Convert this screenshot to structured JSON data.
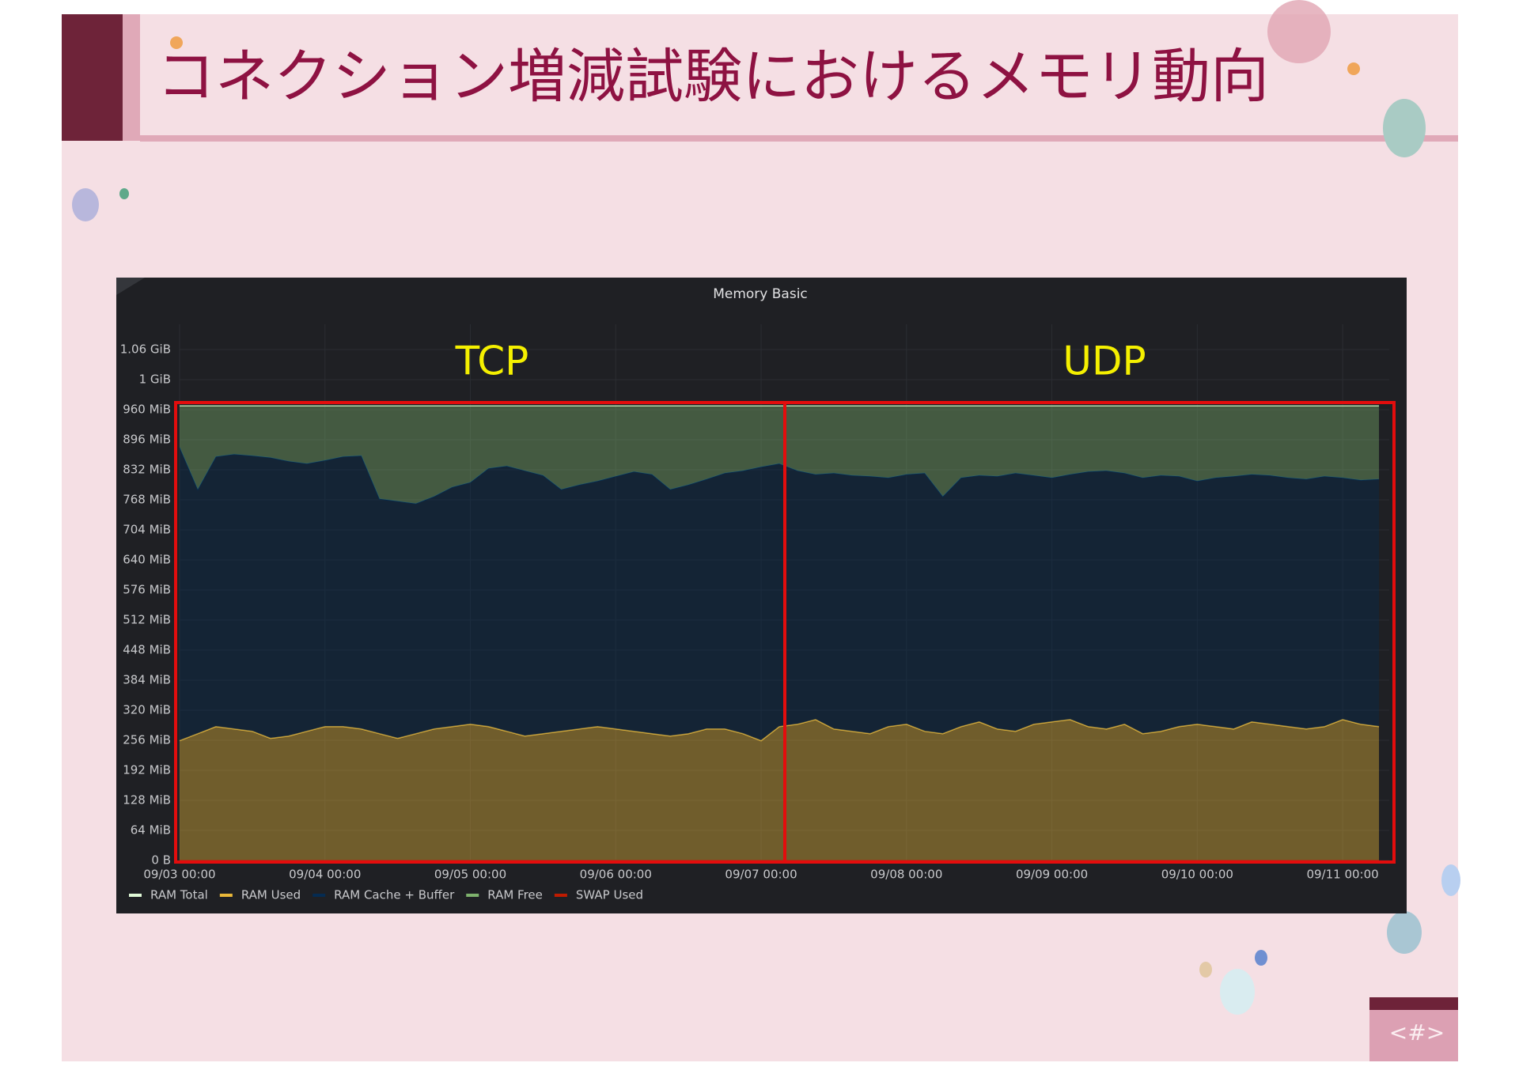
{
  "slide": {
    "title": "コネクション増減試験におけるメモリ動向",
    "page_label": "<#>"
  },
  "chart_data": {
    "type": "stacked-area",
    "title": "Memory Basic",
    "annotations": [
      "TCP",
      "UDP"
    ],
    "categories": [
      "09/03 00:00",
      null,
      null,
      null,
      null,
      null,
      null,
      null,
      "09/04 00:00",
      null,
      null,
      null,
      null,
      null,
      null,
      null,
      "09/05 00:00",
      null,
      null,
      null,
      null,
      null,
      null,
      null,
      "09/06 00:00",
      null,
      null,
      null,
      null,
      null,
      null,
      null,
      "09/07 00:00",
      null,
      null,
      null,
      null,
      null,
      null,
      null,
      "09/08 00:00",
      null,
      null,
      null,
      null,
      null,
      null,
      null,
      "09/09 00:00",
      null,
      null,
      null,
      null,
      null,
      null,
      null,
      "09/10 00:00",
      null,
      null,
      null,
      null,
      null,
      null,
      null,
      "09/11 00:00",
      null,
      null
    ],
    "ylim": [
      0,
      1088
    ],
    "yticks": [
      {
        "value": 0,
        "label": "0 B"
      },
      {
        "value": 64,
        "label": "64 MiB"
      },
      {
        "value": 128,
        "label": "128 MiB"
      },
      {
        "value": 192,
        "label": "192 MiB"
      },
      {
        "value": 256,
        "label": "256 MiB"
      },
      {
        "value": 320,
        "label": "320 MiB"
      },
      {
        "value": 384,
        "label": "384 MiB"
      },
      {
        "value": 448,
        "label": "448 MiB"
      },
      {
        "value": 512,
        "label": "512 MiB"
      },
      {
        "value": 576,
        "label": "576 MiB"
      },
      {
        "value": 640,
        "label": "640 MiB"
      },
      {
        "value": 704,
        "label": "704 MiB"
      },
      {
        "value": 768,
        "label": "768 MiB"
      },
      {
        "value": 832,
        "label": "832 MiB"
      },
      {
        "value": 896,
        "label": "896 MiB"
      },
      {
        "value": 960,
        "label": "960 MiB"
      },
      {
        "value": 1024,
        "label": "1 GiB"
      },
      {
        "value": 1088,
        "label": "1.06 GiB"
      }
    ],
    "grid": true,
    "legend": "bottom-left",
    "series": [
      {
        "name": "RAM Total",
        "color": "#e0f9d7",
        "stack": false,
        "values": [
          968,
          968,
          968,
          968,
          968,
          968,
          968,
          968,
          968,
          968,
          968,
          968,
          968,
          968,
          968,
          968,
          968,
          968,
          968,
          968,
          968,
          968,
          968,
          968,
          968,
          968,
          968,
          968,
          968,
          968,
          968,
          968,
          968,
          968,
          968,
          968,
          968,
          968,
          968,
          968,
          968,
          968,
          968,
          968,
          968,
          968,
          968,
          968,
          968,
          968,
          968,
          968,
          968,
          968,
          968,
          968,
          968,
          968,
          968,
          968,
          968,
          968,
          968,
          968,
          968,
          968,
          968
        ]
      },
      {
        "name": "RAM Used",
        "color": "#eab839",
        "stack": true,
        "values": [
          255,
          270,
          285,
          280,
          275,
          260,
          265,
          275,
          285,
          285,
          280,
          270,
          260,
          270,
          280,
          285,
          290,
          285,
          275,
          265,
          270,
          275,
          280,
          285,
          280,
          275,
          270,
          265,
          270,
          280,
          280,
          270,
          255,
          285,
          290,
          300,
          280,
          275,
          270,
          285,
          290,
          275,
          270,
          285,
          295,
          280,
          275,
          290,
          295,
          300,
          285,
          280,
          290,
          270,
          275,
          285,
          290,
          285,
          280,
          295,
          290,
          285,
          280,
          285,
          300,
          290,
          285
        ]
      },
      {
        "name": "RAM Cache + Buffer",
        "color": "#052b51",
        "stack": true,
        "values": [
          625,
          520,
          575,
          585,
          587,
          598,
          585,
          570,
          567,
          575,
          582,
          500,
          505,
          490,
          495,
          510,
          515,
          550,
          565,
          565,
          550,
          515,
          520,
          523,
          538,
          553,
          552,
          525,
          530,
          532,
          545,
          560,
          583,
          560,
          540,
          522,
          545,
          545,
          548,
          530,
          532,
          550,
          505,
          530,
          525,
          538,
          550,
          530,
          520,
          522,
          543,
          550,
          535,
          545,
          545,
          533,
          518,
          530,
          538,
          527,
          530,
          530,
          532,
          533,
          515,
          520,
          527
        ]
      },
      {
        "name": "RAM Free",
        "color": "#7eb26d",
        "stack": true,
        "values": [
          88,
          178,
          108,
          103,
          106,
          110,
          118,
          123,
          116,
          108,
          106,
          198,
          203,
          208,
          193,
          173,
          163,
          133,
          128,
          138,
          148,
          178,
          168,
          160,
          150,
          140,
          146,
          178,
          168,
          156,
          143,
          138,
          130,
          123,
          138,
          146,
          143,
          148,
          150,
          153,
          146,
          143,
          193,
          153,
          148,
          150,
          143,
          148,
          153,
          146,
          140,
          138,
          143,
          153,
          148,
          150,
          160,
          153,
          150,
          146,
          148,
          153,
          156,
          150,
          153,
          158,
          156
        ]
      },
      {
        "name": "SWAP Used",
        "color": "#bf1b00",
        "stack": false,
        "values": [
          0,
          0,
          0,
          0,
          0,
          0,
          0,
          0,
          0,
          0,
          0,
          0,
          0,
          0,
          0,
          0,
          0,
          0,
          0,
          0,
          0,
          0,
          0,
          0,
          0,
          0,
          0,
          0,
          0,
          0,
          0,
          0,
          0,
          0,
          0,
          0,
          0,
          0,
          0,
          0,
          0,
          0,
          0,
          0,
          0,
          0,
          0,
          0,
          0,
          0,
          0,
          0,
          0,
          0,
          0,
          0,
          0,
          0,
          0,
          0,
          0,
          0,
          0,
          0,
          0,
          0,
          0
        ]
      }
    ]
  }
}
